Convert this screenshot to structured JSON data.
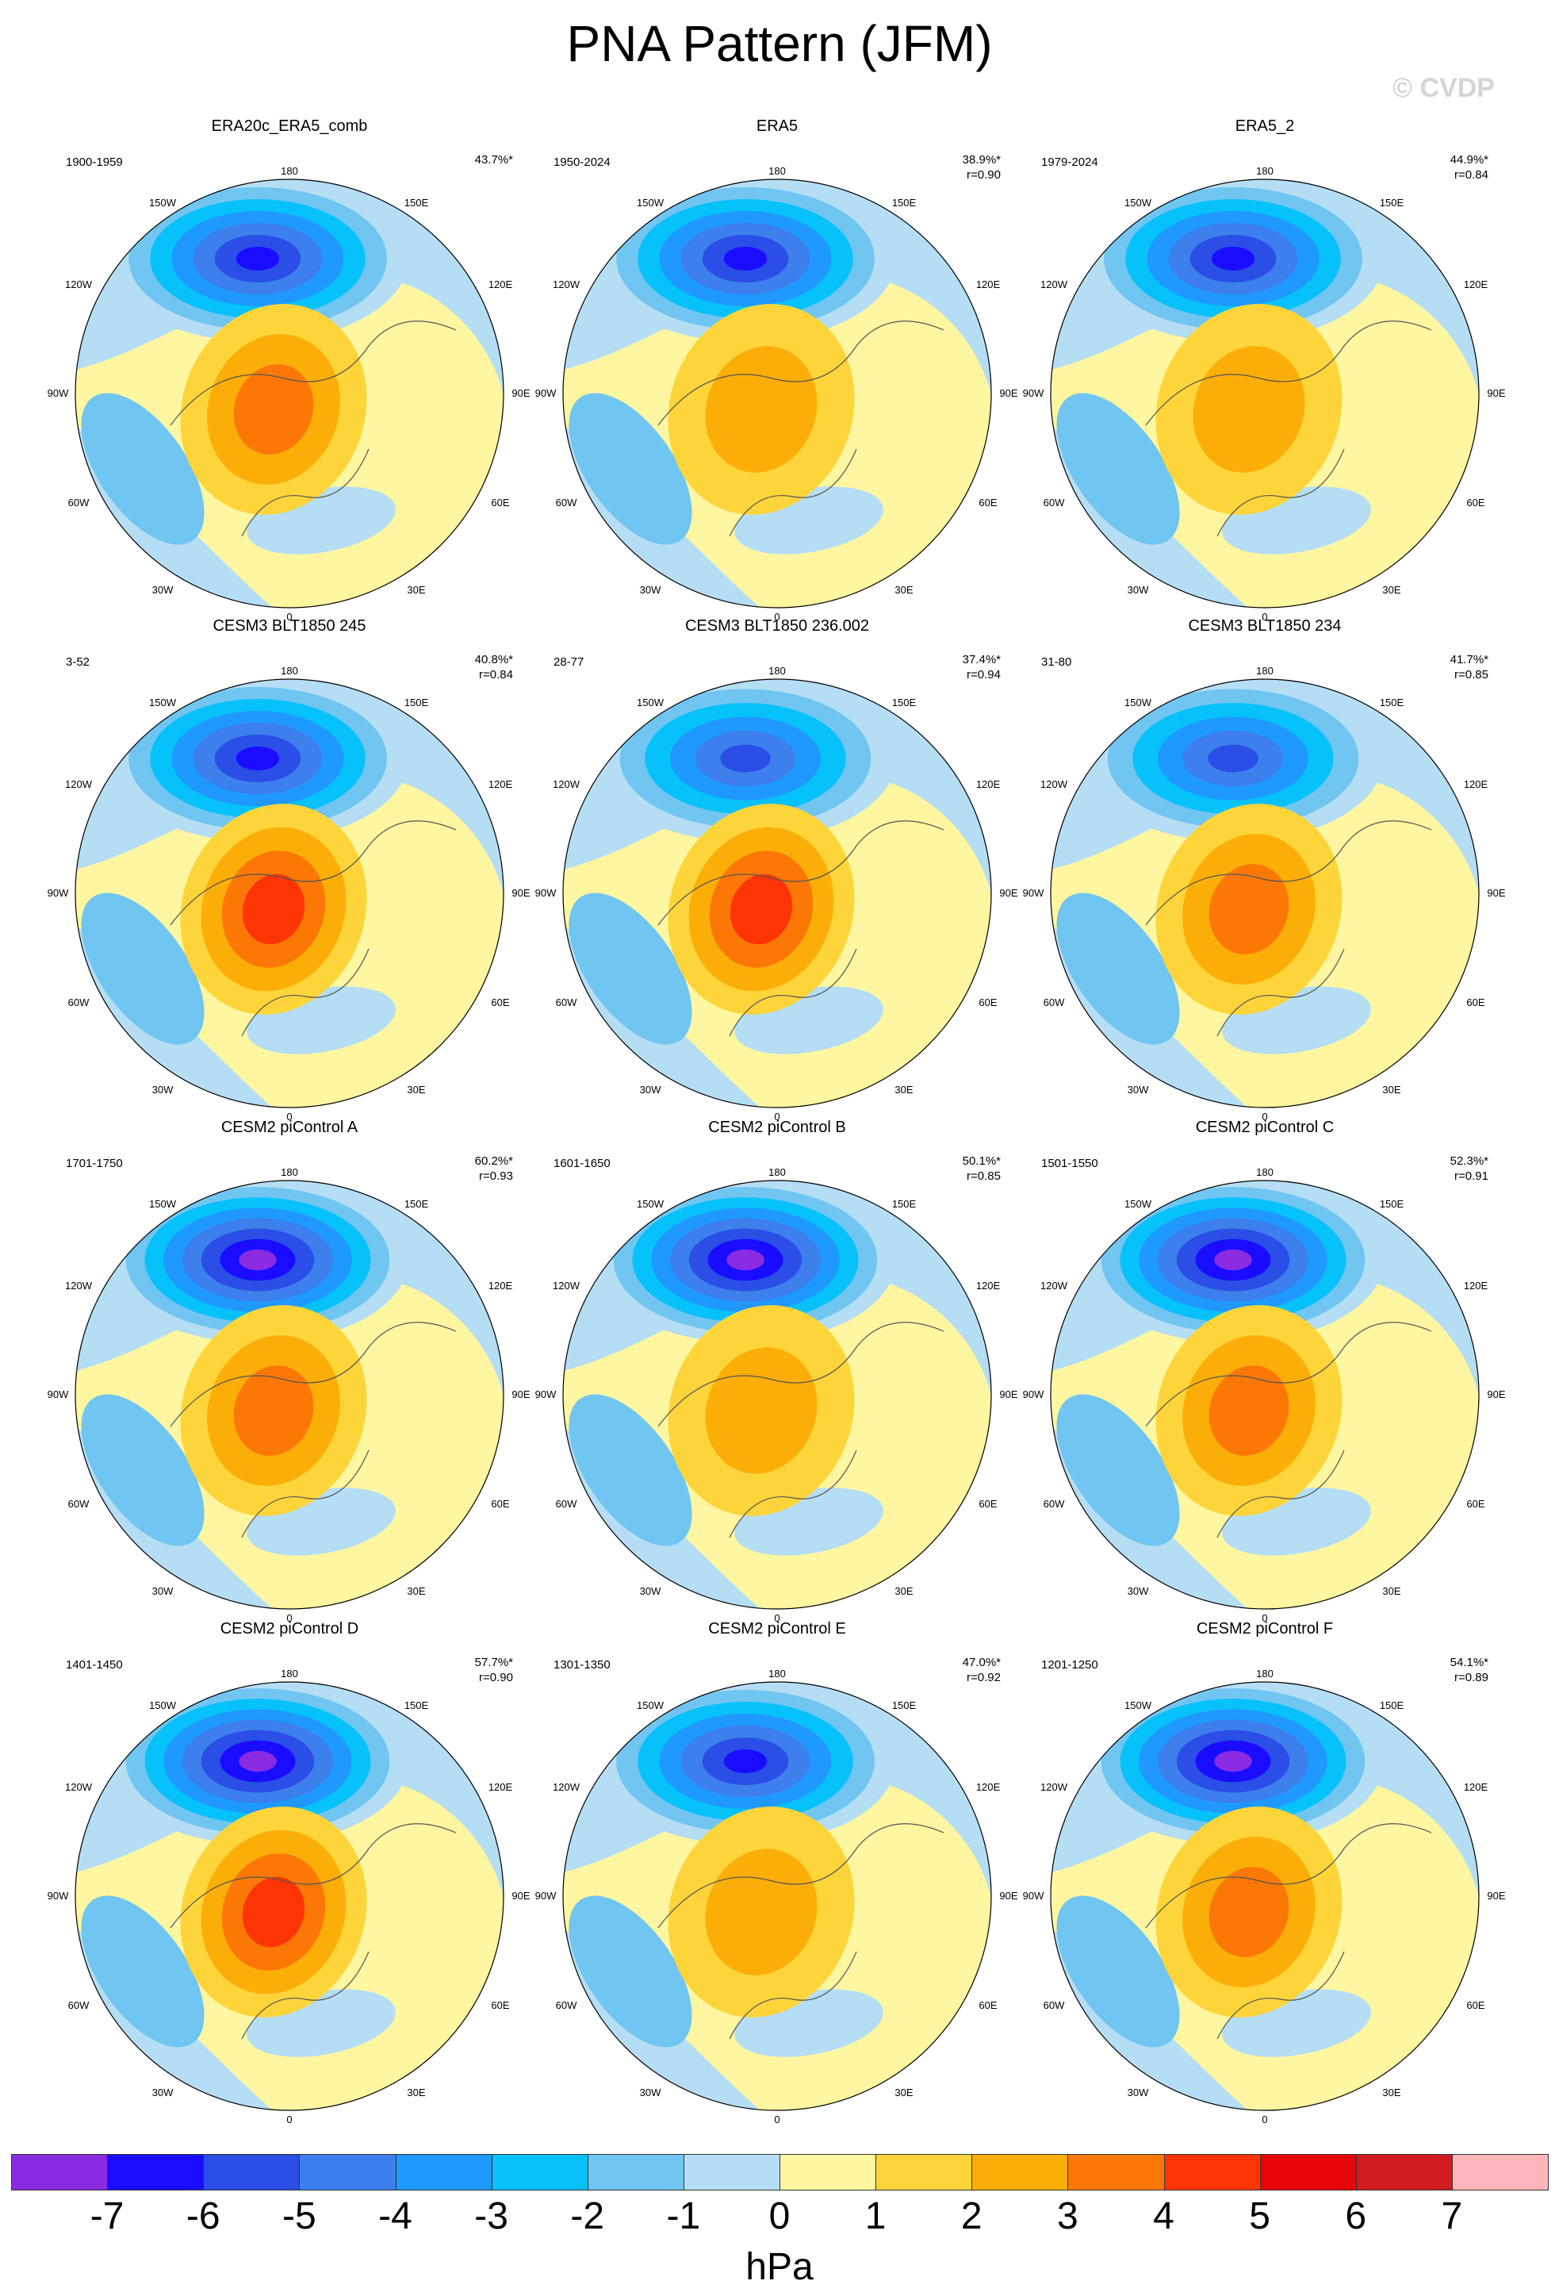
{
  "title": "PNA Pattern (JFM)",
  "watermark": "© CVDP",
  "lon_labels": {
    "top": "180",
    "ul": "150W",
    "ur": "150E",
    "l1": "120W",
    "r1": "120E",
    "l2": "90W",
    "r2": "90E",
    "l3": "60W",
    "r3": "60E",
    "bl": "30W",
    "br": "30E",
    "bottom": "0"
  },
  "panels": [
    {
      "title": "ERA20c_ERA5_comb",
      "years": "1900-1959",
      "pct": "43.7%*",
      "r": ""
    },
    {
      "title": "ERA5",
      "years": "1950-2024",
      "pct": "38.9%*",
      "r": "r=0.90"
    },
    {
      "title": "ERA5_2",
      "years": "1979-2024",
      "pct": "44.9%*",
      "r": "r=0.84"
    },
    {
      "title": "CESM3 BLT1850 245",
      "years": "3-52",
      "pct": "40.8%*",
      "r": "r=0.84"
    },
    {
      "title": "CESM3 BLT1850 236.002",
      "years": "28-77",
      "pct": "37.4%*",
      "r": "r=0.94"
    },
    {
      "title": "CESM3 BLT1850 234",
      "years": "31-80",
      "pct": "41.7%*",
      "r": "r=0.85"
    },
    {
      "title": "CESM2 piControl A",
      "years": "1701-1750",
      "pct": "60.2%*",
      "r": "r=0.93"
    },
    {
      "title": "CESM2 piControl B",
      "years": "1601-1650",
      "pct": "50.1%*",
      "r": "r=0.85"
    },
    {
      "title": "CESM2 piControl C",
      "years": "1501-1550",
      "pct": "52.3%*",
      "r": "r=0.91"
    },
    {
      "title": "CESM2 piControl D",
      "years": "1401-1450",
      "pct": "57.7%*",
      "r": "r=0.90"
    },
    {
      "title": "CESM2 piControl E",
      "years": "1301-1350",
      "pct": "47.0%*",
      "r": "r=0.92"
    },
    {
      "title": "CESM2 piControl F",
      "years": "1201-1250",
      "pct": "54.1%*",
      "r": "r=0.89"
    }
  ],
  "chart_data": {
    "type": "heatmap",
    "title": "PNA Pattern (JFM)",
    "units": "hPa",
    "colorbar": {
      "ticks": [
        "-7",
        "-6",
        "-5",
        "-4",
        "-3",
        "-2",
        "-1",
        "0",
        "1",
        "2",
        "3",
        "4",
        "5",
        "6",
        "7"
      ],
      "colors": [
        "#8a2be2",
        "#1a0dff",
        "#2a4ee6",
        "#3d7fec",
        "#1f98ff",
        "#07c1fb",
        "#71c5f1",
        "#b5def4",
        "#fef6a0",
        "#fdd53a",
        "#fcae08",
        "#fc7806",
        "#fd3505",
        "#e8050a",
        "#d11d21",
        "#ffb5b9"
      ]
    },
    "low_center_hpa": [
      -6,
      -6,
      -6,
      -6,
      -5,
      -5,
      -7,
      -7,
      -7,
      -7,
      -6,
      -7
    ],
    "high_center_hpa": [
      3,
      2,
      2,
      4,
      4,
      3,
      3,
      2,
      3,
      4,
      2,
      3
    ]
  }
}
